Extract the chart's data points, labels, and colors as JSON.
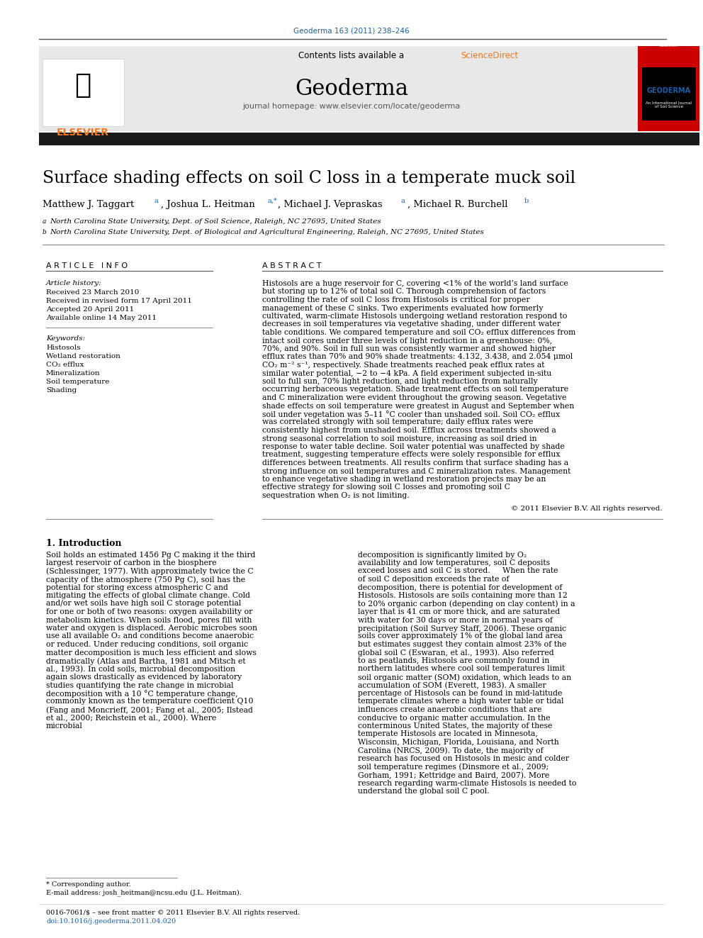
{
  "journal_ref": "Geoderma 163 (2011) 238–246",
  "contents_line": "Contents lists available at ScienceDirect",
  "journal_name": "Geoderma",
  "journal_homepage": "journal homepage: www.elsevier.com/locate/geoderma",
  "title": "Surface shading effects on soil C loss in a temperate muck soil",
  "authors": "Matthew J. Taggart à, Joshua L. Heitman à,*, Michael J. Vepraskas à, Michael R. Burchell b",
  "affil_a": "à North Carolina State University, Dept. of Soil Science, Raleigh, NC 27695, United States",
  "affil_b": "b North Carolina State University, Dept. of Biological and Agricultural Engineering, Raleigh, NC 27695, United States",
  "article_info_header": "A R T I C L E   I N F O",
  "abstract_header": "A B S T R A C T",
  "article_history_label": "Article history:",
  "received": "Received 23 March 2010",
  "received_revised": "Received in revised form 17 April 2011",
  "accepted": "Accepted 20 April 2011",
  "available": "Available online 14 May 2011",
  "keywords_label": "Keywords:",
  "keywords": [
    "Histosols",
    "Wetland restoration",
    "CO₂ efflux",
    "Mineralization",
    "Soil temperature",
    "Shading"
  ],
  "abstract_text": "Histosols are a huge reservoir for C, covering <1% of the world’s land surface but storing up to 12% of total soil C. Thorough comprehension of factors controlling the rate of soil C loss from Histosols is critical for proper management of these C sinks. Two experiments evaluated how formerly cultivated, warm-climate Histosols undergoing wetland restoration respond to decreases in soil temperatures via vegetative shading, under different water table conditions. We compared temperature and soil CO₂ efflux differences from intact soil cores under three levels of light reduction in a greenhouse: 0%, 70%, and 90%. Soil in full sun was consistently warmer and showed higher efflux rates than 70% and 90% shade treatments: 4.132, 3.438, and 2.054 μmol CO₂ m⁻² s⁻¹, respectively. Shade treatments reached peak efflux rates at similar water potential, −2 to −4 kPa. A field experiment subjected in-situ soil to full sun, 70% light reduction, and light reduction from naturally occurring herbaceous vegetation. Shade treatment effects on soil temperature and C mineralization were evident throughout the growing season. Vegetative shade effects on soil temperature were greatest in August and September when soil under vegetation was 5–11 °C cooler than unshaded soil. Soil CO₂ efflux was correlated strongly with soil temperature; daily efflux rates were consistently highest from unshaded soil. Efflux across treatments showed a strong seasonal correlation to soil moisture, increasing as soil dried in response to water table decline. Soil water potential was unaffected by shade treatment, suggesting temperature effects were solely responsible for efflux differences between treatments. All results confirm that surface shading has a strong influence on soil temperatures and C mineralization rates. Management to enhance vegetative shading in wetland restoration projects may be an effective strategy for slowing soil C losses and promoting soil C sequestration when O₂ is not limiting.",
  "copyright": "© 2011 Elsevier B.V. All rights reserved.",
  "intro_header": "1. Introduction",
  "intro_col1": "Soil holds an estimated 1456 Pg C making it the third largest reservoir of carbon in the biosphere (Schlessinger, 1977). With approximately twice the C capacity of the atmosphere (750 Pg C), soil has the potential for storing excess atmospheric C and mitigating the effects of global climate change. Cold and/or wet soils have high soil C storage potential for one or both of two reasons: oxygen availability or metabolism kinetics. When soils flood, pores fill with water and oxygen is displaced. Aerobic microbes soon use all available O₂ and conditions become anaerobic or reduced. Under reducing conditions, soil organic matter decomposition is much less efficient and slows dramatically (Atlas and Bartha, 1981 and Mitsch et al., 1993). In cold soils, microbial decomposition again slows drastically as evidenced by laboratory studies quantifying the rate change in microbial decomposition with a 10 °C temperature change, commonly known as the temperature coefficient Q10 (Fang and Moncrieff, 2001; Fang et al., 2005; Ilstead et al., 2000; Reichstein et al., 2000). Where microbial",
  "intro_col2": "decomposition is significantly limited by O₂ availability and low temperatures, soil C deposits exceed losses and soil C is stored.\n    When the rate of soil C deposition exceeds the rate of decomposition, there is potential for development of Histosols. Histosols are soils containing more than 12 to 20% organic carbon (depending on clay content) in a layer that is 41 cm or more thick, and are saturated with water for 30 days or more in normal years of precipitation (Soil Survey Staff, 2006). These organic soils cover approximately 1% of the global land area but estimates suggest they contain almost 23% of the global soil C (Eswaran, et al., 1993). Also referred to as peatlands, Histosols are commonly found in northern latitudes where cool soil temperatures limit soil organic matter (SOM) oxidation, which leads to an accumulation of SOM (Everett, 1983). A smaller percentage of Histosols can be found in mid-latitude temperate climates where a high water table or tidal influences create anaerobic conditions that are conducive to organic matter accumulation. In the conterminous United States, the majority of these temperate Histosols are located in Minnesota, Wisconsin, Michigan, Florida, Louisiana, and North Carolina (NRCS, 2009). To date, the majority of research has focused on Histosols in mesic and colder soil temperature regimes (Dinsmore et al., 2009; Gorham, 1991; Kettridge and Baird, 2007). More research regarding warm-climate Histosols is needed to understand the global soil C pool.",
  "footnote1": "* Corresponding author.",
  "footnote2": "E-mail address: josh_heitman@ncsu.edu (J.L. Heitman).",
  "footer1": "0016-7061/$ – see front matter © 2011 Elsevier B.V. All rights reserved.",
  "footer2": "doi:10.1016/j.geoderma.2011.04.020",
  "color_blue": "#1a5fa8",
  "color_sciencedirect": "#e87722",
  "color_header_bg": "#e8e8e8",
  "color_black": "#000000",
  "color_dark": "#1a1a1a",
  "color_gray_line": "#888888",
  "color_elsevier_orange": "#f47920",
  "color_geoderma_red": "#cc0000"
}
